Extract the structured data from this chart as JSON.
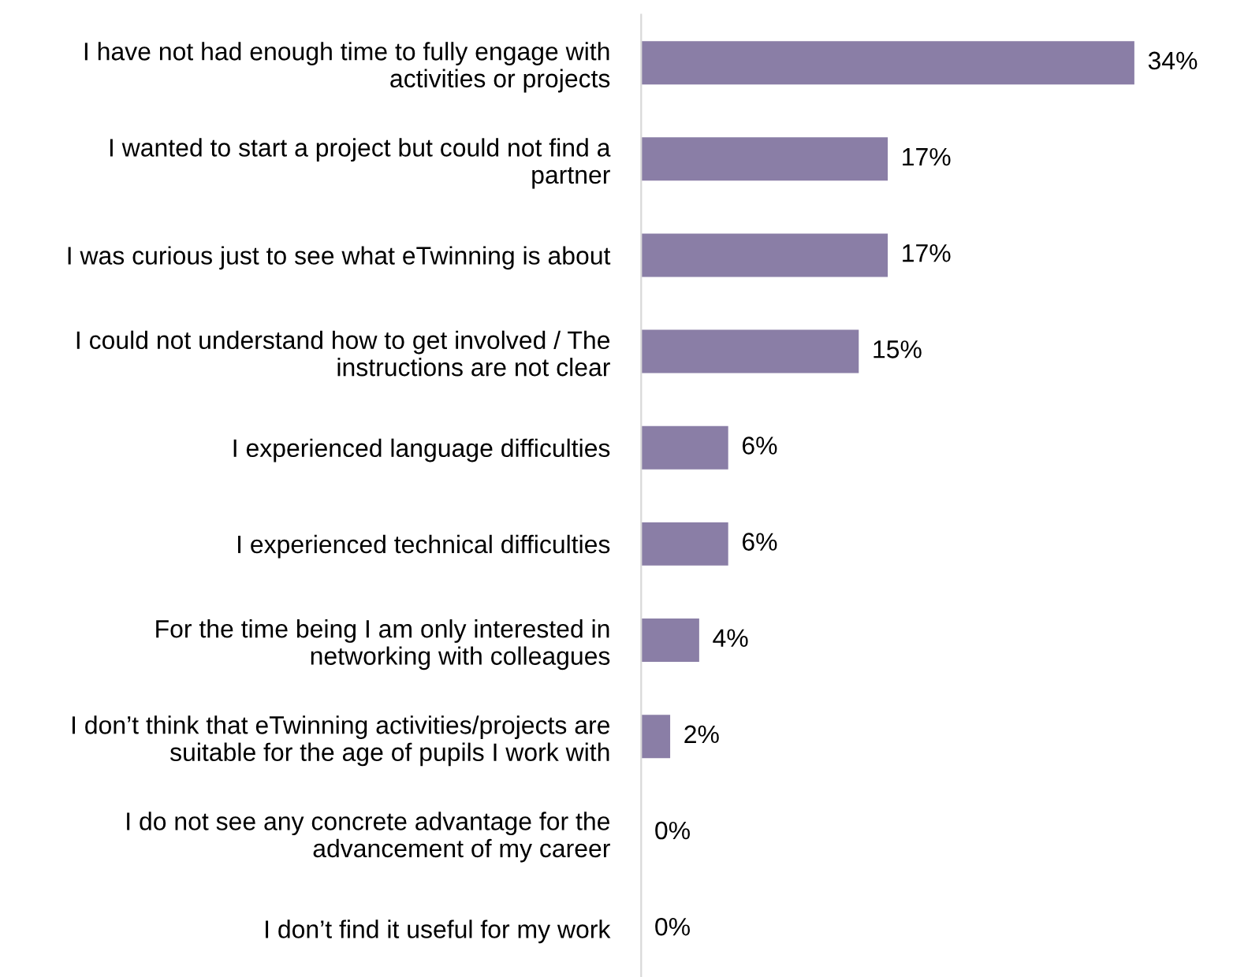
{
  "chart_data": {
    "type": "bar",
    "orientation": "horizontal",
    "categories": [
      "I have not had enough time to fully engage with\nactivities or projects",
      "I wanted to start a project but could not find a\npartner",
      "I was curious just to see what eTwinning is about",
      "I could not understand how to get involved / The\ninstructions are not clear",
      "I experienced language difficulties",
      "I experienced technical difficulties",
      "For the time being I am only interested in\nnetworking with colleagues",
      "I don’t think that eTwinning activities/projects are\nsuitable for the age of pupils I work with",
      "I do not see any concrete advantage for the\nadvancement of my career",
      "I don’t find it useful for my work"
    ],
    "values": [
      34,
      17,
      17,
      15,
      6,
      6,
      4,
      2,
      0,
      0
    ],
    "value_labels": [
      "34%",
      "17%",
      "17%",
      "15%",
      "6%",
      "6%",
      "4%",
      "2%",
      "0%",
      "0%"
    ],
    "color": "#8a7ea6",
    "tick_labels": "y",
    "grid": false,
    "legend": false
  }
}
